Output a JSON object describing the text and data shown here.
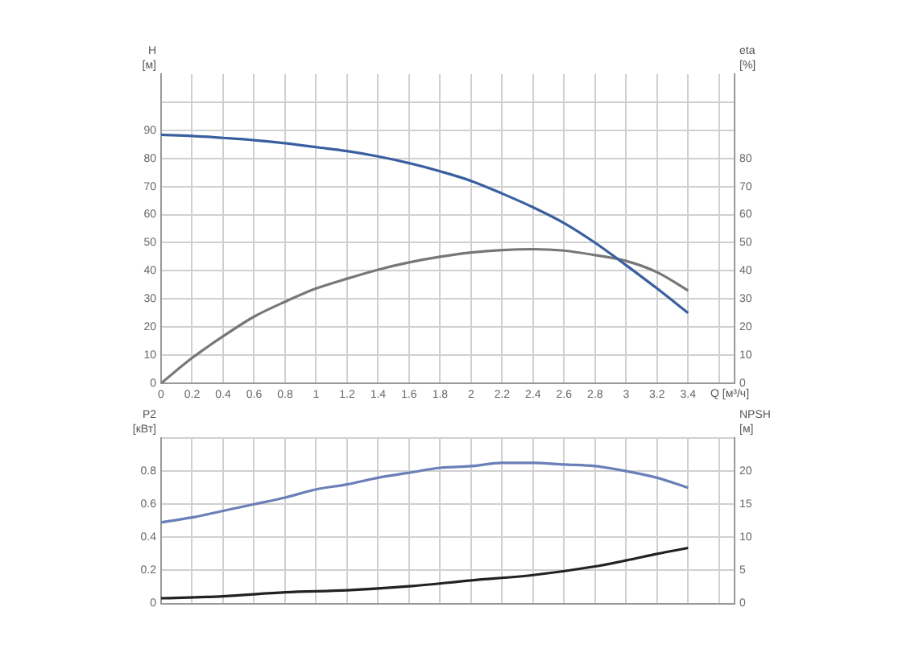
{
  "chart_data": [
    {
      "type": "line",
      "ylabel": "H [м]",
      "y2label": "eta [%]",
      "xlabel": "Q [м³/ч]",
      "grid": true,
      "marker": "none",
      "legend": false,
      "xlim": [
        0,
        3.7
      ],
      "xticks": [
        0,
        0.2,
        0.4,
        0.6,
        0.8,
        1.0,
        1.2,
        1.4,
        1.6,
        1.8,
        2.0,
        2.2,
        2.4,
        2.6,
        2.8,
        3.0,
        3.2,
        3.4,
        {
          "value": 3.6,
          "label": null
        }
      ],
      "ylim": [
        0,
        110
      ],
      "yticks": [
        0,
        10,
        20,
        30,
        40,
        50,
        60,
        70,
        80,
        90,
        {
          "value": 100,
          "label": null
        }
      ],
      "y2lim": [
        0,
        110
      ],
      "y2ticks": [
        0,
        10,
        20,
        30,
        40,
        50,
        60,
        70,
        80
      ],
      "x": [
        0,
        0.2,
        0.4,
        0.6,
        0.8,
        1.0,
        1.2,
        1.4,
        1.6,
        1.8,
        2.0,
        2.2,
        2.4,
        2.6,
        2.8,
        3.0,
        3.2,
        3.4
      ],
      "series": [
        {
          "color": "#3a5fa0",
          "values": [
            88.4,
            88,
            87.3,
            86.5,
            85.4,
            84,
            82.6,
            80.7,
            78.3,
            75.4,
            72,
            67.5,
            62.6,
            57,
            50,
            42,
            33.7,
            25
          ]
        },
        {
          "color": "#777777",
          "axis": "y2",
          "values": [
            0,
            9,
            16.7,
            23.7,
            29,
            33.7,
            37.2,
            40.4,
            43,
            45,
            46.5,
            47.4,
            47.7,
            47.2,
            45.6,
            43.5,
            39.5,
            33
          ]
        }
      ]
    },
    {
      "type": "line",
      "ylabel": "P2 [кВт]",
      "y2label": "NPSH [м]",
      "grid": true,
      "marker": "none",
      "legend": false,
      "tick_labels": "y",
      "xlim": [
        0,
        3.7
      ],
      "xticks": [
        0,
        0.2,
        0.4,
        0.6,
        0.8,
        1.0,
        1.2,
        1.4,
        1.6,
        1.8,
        2.0,
        2.2,
        2.4,
        2.6,
        2.8,
        3.0,
        3.2,
        3.4,
        3.6
      ],
      "ylim": [
        0,
        1.0
      ],
      "yticks": [
        0,
        0.2,
        0.4,
        0.6,
        0.8,
        {
          "value": 1.0,
          "label": null
        }
      ],
      "y2lim": [
        0,
        25
      ],
      "y2ticks": [
        0,
        5,
        10,
        15,
        20
      ],
      "x": [
        0,
        0.2,
        0.4,
        0.6,
        0.8,
        1.0,
        1.2,
        1.4,
        1.6,
        1.8,
        2.0,
        2.2,
        2.4,
        2.6,
        2.8,
        3.0,
        3.2,
        3.4
      ],
      "series": [
        {
          "color": "#6a7fb8",
          "values": [
            0.49,
            0.52,
            0.56,
            0.6,
            0.64,
            0.69,
            0.72,
            0.76,
            0.79,
            0.82,
            0.83,
            0.85,
            0.85,
            0.84,
            0.83,
            0.8,
            0.76,
            0.7
          ]
        },
        {
          "color": "#222222",
          "axis": "y2",
          "x": [
            0,
            0.4,
            0.8,
            1.2,
            1.6,
            2.0,
            2.4,
            2.8,
            3.0,
            3.2,
            3.4
          ],
          "values": [
            0.8,
            1.1,
            1.7,
            2.0,
            2.6,
            3.5,
            4.3,
            5.6,
            6.5,
            7.5,
            8.4
          ]
        }
      ]
    }
  ]
}
